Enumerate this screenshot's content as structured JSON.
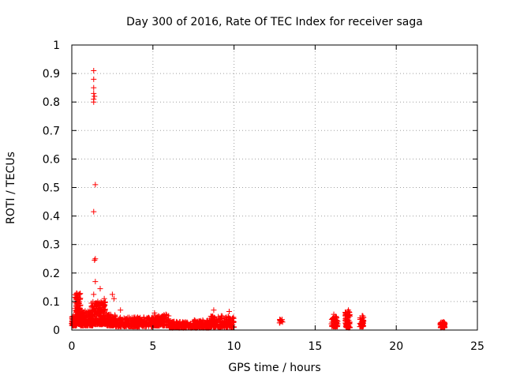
{
  "chart_data": {
    "type": "scatter",
    "title": "Day 300 of 2016, Rate Of TEC Index for receiver saga",
    "xlabel": "GPS time / hours",
    "ylabel": "ROTI / TECUs",
    "xlim": [
      0,
      25
    ],
    "ylim": [
      0,
      1
    ],
    "x_ticks": [
      "0",
      "5",
      "10",
      "15",
      "20",
      "25"
    ],
    "y_ticks": [
      "0",
      "0.1",
      "0.2",
      "0.3",
      "0.4",
      "0.5",
      "0.6",
      "0.7",
      "0.8",
      "0.9",
      "1"
    ],
    "grid": true,
    "marker": "plus",
    "color": "#ff0000",
    "outliers": [
      {
        "x": 1.35,
        "y": 0.91
      },
      {
        "x": 1.35,
        "y": 0.88
      },
      {
        "x": 1.35,
        "y": 0.85
      },
      {
        "x": 1.35,
        "y": 0.83
      },
      {
        "x": 1.4,
        "y": 0.82
      },
      {
        "x": 1.35,
        "y": 0.81
      },
      {
        "x": 1.35,
        "y": 0.8
      },
      {
        "x": 1.45,
        "y": 0.51
      },
      {
        "x": 1.35,
        "y": 0.415
      },
      {
        "x": 1.45,
        "y": 0.25
      },
      {
        "x": 1.4,
        "y": 0.245
      },
      {
        "x": 1.45,
        "y": 0.17
      },
      {
        "x": 1.35,
        "y": 0.125
      },
      {
        "x": 1.75,
        "y": 0.145
      },
      {
        "x": 0.3,
        "y": 0.125
      },
      {
        "x": 2.5,
        "y": 0.125
      },
      {
        "x": 2.6,
        "y": 0.11
      },
      {
        "x": 2.0,
        "y": 0.11
      },
      {
        "x": 0.25,
        "y": 0.1
      },
      {
        "x": 1.6,
        "y": 0.1
      },
      {
        "x": 3.0,
        "y": 0.07
      },
      {
        "x": 8.75,
        "y": 0.07
      },
      {
        "x": 9.7,
        "y": 0.065
      },
      {
        "x": 5.1,
        "y": 0.06
      },
      {
        "x": 5.8,
        "y": 0.055
      },
      {
        "x": 17.05,
        "y": 0.07
      },
      {
        "x": 16.15,
        "y": 0.055
      },
      {
        "x": 17.9,
        "y": 0.05
      }
    ],
    "clusters": [
      {
        "x_range": [
          0,
          0.3
        ],
        "y_range": [
          0.015,
          0.05
        ],
        "count": 80
      },
      {
        "x_range": [
          0.2,
          0.55
        ],
        "y_range": [
          0.02,
          0.13
        ],
        "count": 130
      },
      {
        "x_range": [
          0.5,
          1.3
        ],
        "y_range": [
          0.015,
          0.07
        ],
        "count": 150
      },
      {
        "x_range": [
          1.2,
          1.6
        ],
        "y_range": [
          0.02,
          0.1
        ],
        "count": 90
      },
      {
        "x_range": [
          1.6,
          2.1
        ],
        "y_range": [
          0.02,
          0.1
        ],
        "count": 120
      },
      {
        "x_range": [
          2.1,
          2.7
        ],
        "y_range": [
          0.015,
          0.06
        ],
        "count": 110
      },
      {
        "x_range": [
          2.7,
          5.0
        ],
        "y_range": [
          0.012,
          0.045
        ],
        "count": 300
      },
      {
        "x_range": [
          5.0,
          6.0
        ],
        "y_range": [
          0.015,
          0.055
        ],
        "count": 150
      },
      {
        "x_range": [
          6.0,
          7.5
        ],
        "y_range": [
          0.008,
          0.03
        ],
        "count": 180
      },
      {
        "x_range": [
          7.5,
          8.5
        ],
        "y_range": [
          0.008,
          0.035
        ],
        "count": 140
      },
      {
        "x_range": [
          8.5,
          10.0
        ],
        "y_range": [
          0.01,
          0.05
        ],
        "count": 200
      },
      {
        "x_range": [
          12.8,
          13.0
        ],
        "y_range": [
          0.025,
          0.04
        ],
        "count": 12
      },
      {
        "x_range": [
          16.0,
          16.4
        ],
        "y_range": [
          0.012,
          0.05
        ],
        "count": 60
      },
      {
        "x_range": [
          16.85,
          17.15
        ],
        "y_range": [
          0.008,
          0.065
        ],
        "count": 70
      },
      {
        "x_range": [
          17.75,
          18.0
        ],
        "y_range": [
          0.012,
          0.05
        ],
        "count": 50
      },
      {
        "x_range": [
          22.7,
          23.0
        ],
        "y_range": [
          0.008,
          0.03
        ],
        "count": 50
      }
    ]
  }
}
